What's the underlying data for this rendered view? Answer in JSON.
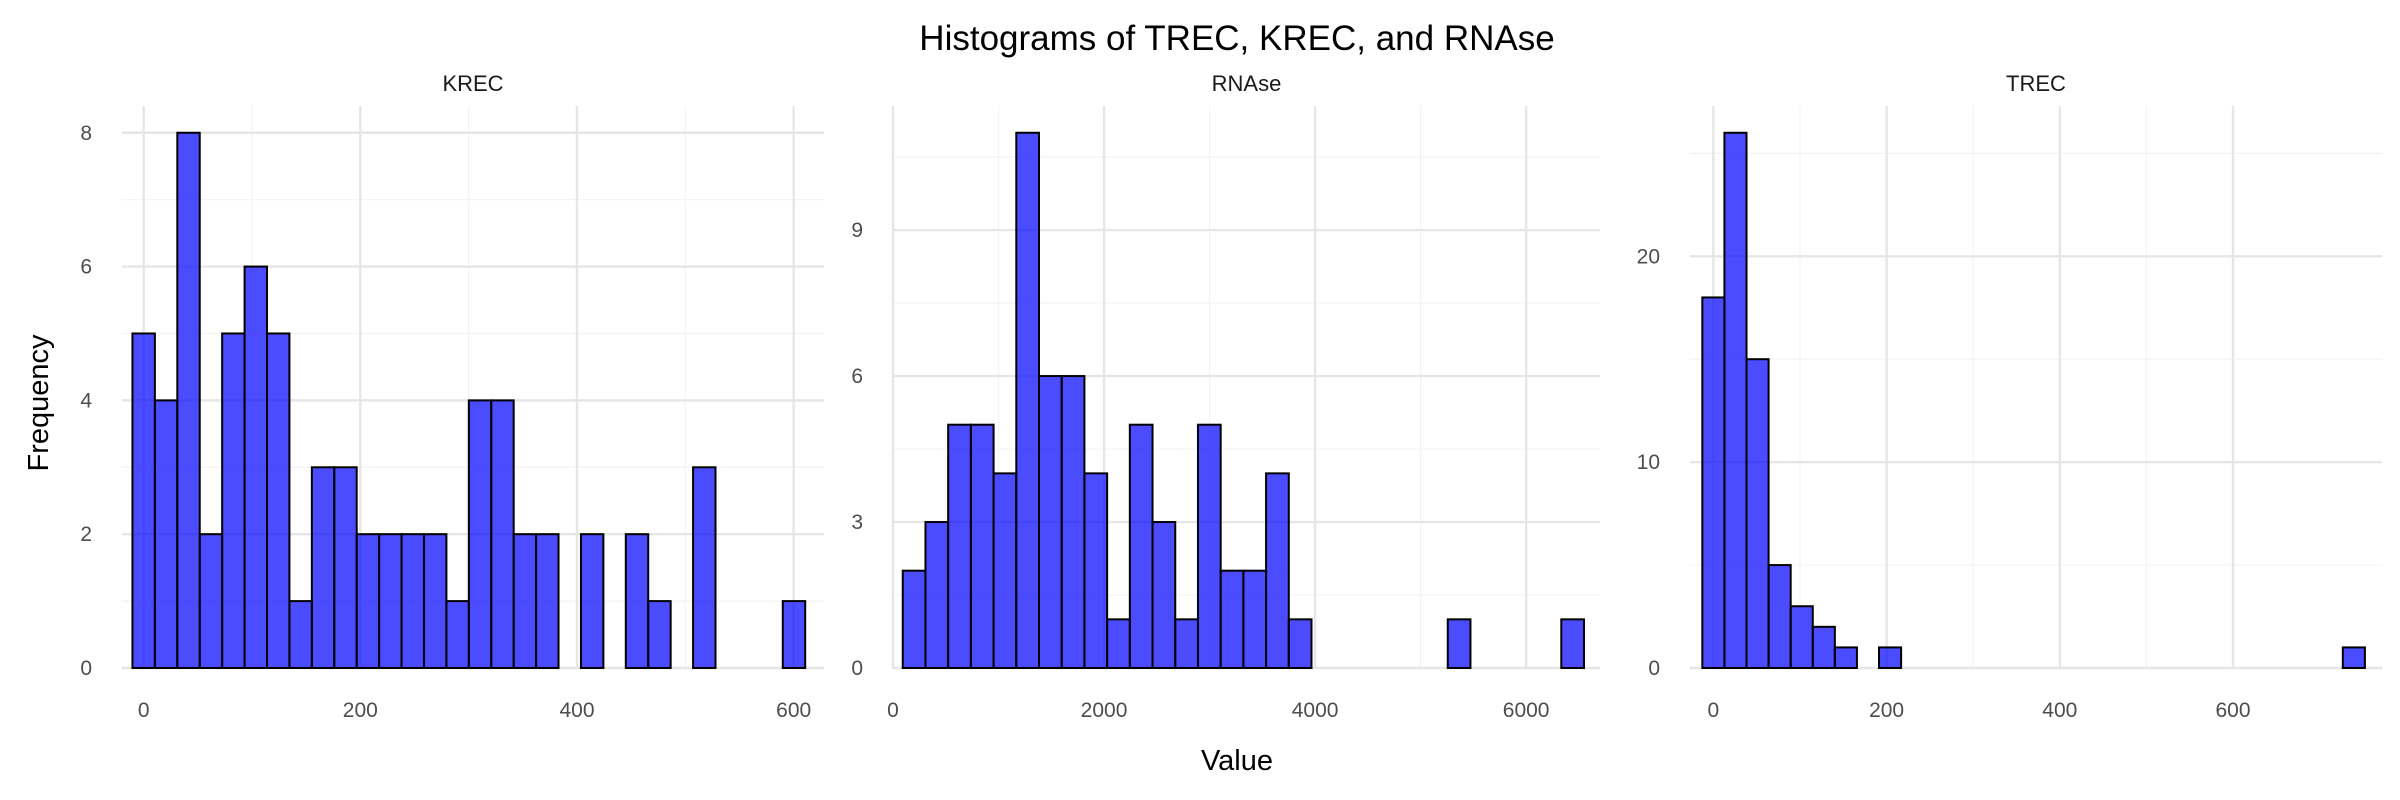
{
  "chart_data": {
    "type": "bar",
    "title": "Histograms of TREC, KREC, and RNAse",
    "xlabel": "Value",
    "ylabel": "Frequency",
    "fill_color": "#0000ff",
    "fill_opacity": 0.7,
    "bar_edge_color": "#000000",
    "grid": true,
    "panels": [
      {
        "name": "KREC",
        "binwidth": 20.7,
        "first_bin_center": 0,
        "counts": [
          5,
          4,
          8,
          2,
          5,
          6,
          5,
          1,
          3,
          3,
          2,
          2,
          2,
          2,
          1,
          4,
          4,
          2,
          2,
          0,
          2,
          0,
          2,
          1,
          0,
          3,
          0,
          0,
          0,
          1
        ],
        "xlim": [
          -20,
          628
        ],
        "ylim": [
          0,
          8.4
        ],
        "xticks": [
          0,
          200,
          400,
          600
        ],
        "xtick_labels": [
          "0",
          "200",
          "400",
          "600"
        ],
        "yticks": [
          0,
          2,
          4,
          6,
          8
        ],
        "ytick_labels": [
          "0",
          "2",
          "4",
          "6",
          "8"
        ]
      },
      {
        "name": "RNAse",
        "binwidth": 215.2,
        "first_bin_center": 200,
        "counts": [
          2,
          3,
          5,
          5,
          4,
          11,
          6,
          6,
          4,
          1,
          5,
          3,
          1,
          5,
          2,
          2,
          4,
          1,
          0,
          0,
          0,
          0,
          0,
          0,
          1,
          0,
          0,
          0,
          0,
          1
        ],
        "xlim": [
          0,
          6700
        ],
        "ylim": [
          0,
          11.55
        ],
        "xticks": [
          0,
          2000,
          4000,
          6000
        ],
        "xtick_labels": [
          "0",
          "2000",
          "4000",
          "6000"
        ],
        "yticks": [
          0,
          3,
          6,
          9
        ],
        "ytick_labels": [
          "0",
          "3",
          "6",
          "9"
        ]
      },
      {
        "name": "TREC",
        "binwidth": 25.5,
        "first_bin_center": 0,
        "counts": [
          18,
          26,
          15,
          5,
          3,
          2,
          1,
          0,
          1,
          0,
          0,
          0,
          0,
          0,
          0,
          0,
          0,
          0,
          0,
          0,
          0,
          0,
          0,
          0,
          0,
          0,
          0,
          0,
          0,
          1
        ],
        "xlim": [
          -27,
          772
        ],
        "ylim": [
          0,
          27.3
        ],
        "xticks": [
          0,
          200,
          400,
          600
        ],
        "xtick_labels": [
          "0",
          "200",
          "400",
          "600"
        ],
        "yticks": [
          0,
          10,
          20
        ],
        "ytick_labels": [
          "0",
          "10",
          "20"
        ]
      }
    ]
  }
}
